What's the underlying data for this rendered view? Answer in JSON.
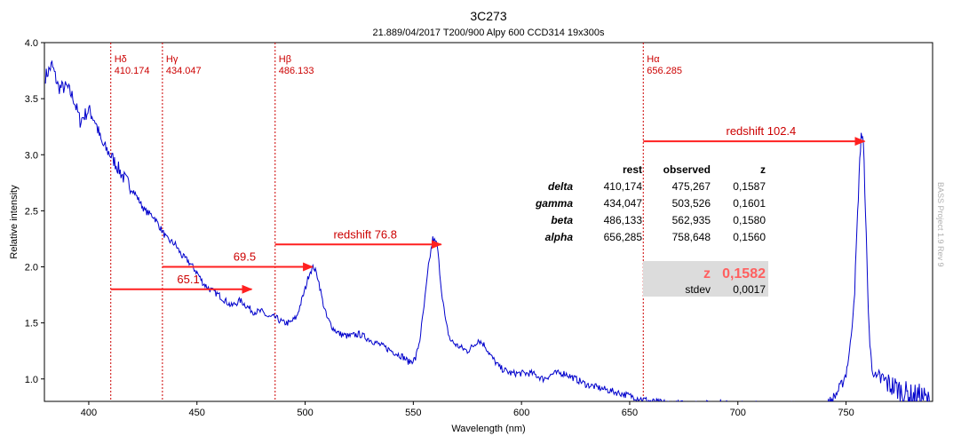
{
  "header": {
    "title": "3C273",
    "subtitle": "21.889/04/2017 T200/900 Alpy 600 CCD314 19x300s"
  },
  "watermark": "BASS Project 1.9 Rev 9",
  "colors": {
    "spectrum": "#0000cc",
    "marker": "#cc0000",
    "arrow": "#ff2020",
    "z_text": "#ff6060",
    "z_box": "#dcdcdc"
  },
  "chart_data": {
    "type": "line",
    "title": "3C273",
    "subtitle": "21.889/04/2017 T200/900 Alpy 600 CCD314 19x300s",
    "xlabel": "Wavelength (nm)",
    "ylabel": "Relative intensity",
    "xlim": [
      379.5,
      790
    ],
    "ylim": [
      0.8,
      4.0
    ],
    "x_ticks": [
      400,
      450,
      500,
      550,
      600,
      650,
      700,
      750
    ],
    "y_ticks": [
      1.0,
      1.5,
      2.0,
      2.5,
      3.0,
      3.5,
      4.0
    ],
    "x_tick_labels": [
      "400",
      "450",
      "500",
      "550",
      "600",
      "650",
      "700",
      "750"
    ],
    "y_tick_labels": [
      "1.0",
      "1.5",
      "2.0",
      "2.5",
      "3.0",
      "3.5",
      "4.0"
    ],
    "grid": false,
    "series": [
      {
        "x": [
          380,
          383,
          386,
          390,
          393,
          396,
          400,
          403,
          406,
          410,
          413,
          416,
          420,
          423,
          426,
          430,
          433,
          436,
          440,
          443,
          446,
          450,
          453,
          456,
          460,
          463,
          466,
          470,
          473,
          476,
          480,
          483,
          486,
          490,
          493,
          496,
          500,
          502,
          504,
          506,
          508,
          510,
          513,
          516,
          520,
          525,
          530,
          535,
          540,
          545,
          548,
          551,
          553,
          555,
          557,
          559,
          561,
          563,
          565,
          567,
          570,
          575,
          578,
          580,
          583,
          586,
          590,
          595,
          600,
          605,
          610,
          615,
          620,
          625,
          630,
          640,
          650,
          660,
          670,
          680,
          690,
          700,
          710,
          720,
          730,
          740,
          745,
          748,
          750,
          752,
          754,
          755,
          756,
          757,
          758,
          759,
          760,
          761,
          762,
          764,
          766,
          770,
          775,
          780,
          785,
          788,
          790
        ],
        "y": [
          3.7,
          3.8,
          3.6,
          3.6,
          3.5,
          3.3,
          3.4,
          3.3,
          3.1,
          3.0,
          2.9,
          2.8,
          2.7,
          2.6,
          2.5,
          2.45,
          2.35,
          2.25,
          2.2,
          2.1,
          2.05,
          1.95,
          1.85,
          1.8,
          1.75,
          1.7,
          1.65,
          1.7,
          1.65,
          1.6,
          1.6,
          1.55,
          1.55,
          1.5,
          1.5,
          1.55,
          1.8,
          1.95,
          2.0,
          1.9,
          1.7,
          1.55,
          1.45,
          1.4,
          1.38,
          1.4,
          1.35,
          1.3,
          1.25,
          1.2,
          1.15,
          1.18,
          1.35,
          1.65,
          2.0,
          2.25,
          2.2,
          1.8,
          1.5,
          1.35,
          1.3,
          1.25,
          1.3,
          1.35,
          1.3,
          1.2,
          1.1,
          1.05,
          1.05,
          1.05,
          1.0,
          1.05,
          1.05,
          1.0,
          0.95,
          0.9,
          0.85,
          0.8,
          0.78,
          0.78,
          0.78,
          0.75,
          0.76,
          0.75,
          0.75,
          0.74,
          0.85,
          0.95,
          1.05,
          1.3,
          1.8,
          2.3,
          2.8,
          3.2,
          3.1,
          2.5,
          1.8,
          1.3,
          1.1,
          1.0,
          1.0,
          0.95,
          0.9,
          0.85,
          0.85,
          0.8,
          0.7
        ]
      }
    ],
    "lines": [
      {
        "name": "Hδ",
        "wavelength_label": "410.174",
        "x": 410.174
      },
      {
        "name": "Hγ",
        "wavelength_label": "434.047",
        "x": 434.047
      },
      {
        "name": "Hβ",
        "wavelength_label": "486.133",
        "x": 486.133
      },
      {
        "name": "Hα",
        "wavelength_label": "656.285",
        "x": 656.285
      }
    ],
    "arrows": [
      {
        "label": "65.1",
        "x1": 410.2,
        "x2": 475.3,
        "y": 1.8
      },
      {
        "label": "69.5",
        "x1": 434.0,
        "x2": 503.5,
        "y": 2.0
      },
      {
        "label": "redshift 76.8",
        "x1": 486.1,
        "x2": 562.9,
        "y": 2.2
      },
      {
        "label": "redshift 102.4",
        "x1": 656.3,
        "x2": 758.6,
        "y": 3.12
      }
    ],
    "table": {
      "headers": [
        "",
        "rest",
        "observed",
        "z"
      ],
      "rows": [
        [
          "delta",
          "410,174",
          "475,267",
          "0,1587"
        ],
        [
          "gamma",
          "434,047",
          "503,526",
          "0,1601"
        ],
        [
          "beta",
          "486,133",
          "562,935",
          "0,1580"
        ],
        [
          "alpha",
          "656,285",
          "758,648",
          "0,1560"
        ]
      ],
      "z_label": "z",
      "z_value": "0,1582",
      "stdev_label": "stdev",
      "stdev_value": "0,0017"
    }
  }
}
